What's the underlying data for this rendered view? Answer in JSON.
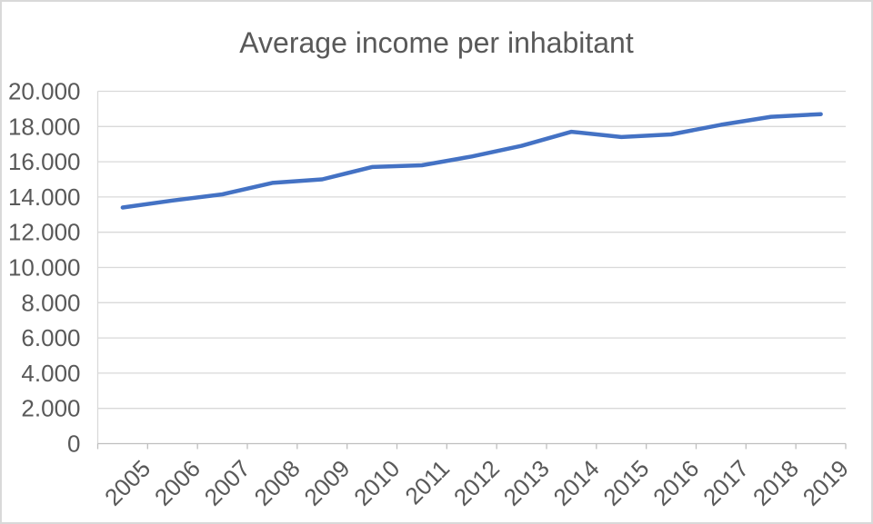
{
  "chart_data": {
    "type": "line",
    "title": "Average income per inhabitant",
    "categories": [
      "2005",
      "2006",
      "2007",
      "2008",
      "2009",
      "2010",
      "2011",
      "2012",
      "2013",
      "2014",
      "2015",
      "2016",
      "2017",
      "2018",
      "2019"
    ],
    "values": [
      13400,
      13800,
      14150,
      14800,
      15000,
      15700,
      15800,
      16300,
      16900,
      17700,
      17400,
      17550,
      18100,
      18550,
      18700
    ],
    "xlabel": "",
    "ylabel": "",
    "ylim": [
      0,
      20000
    ],
    "ytick_interval": 2000,
    "ytick_labels": [
      "0",
      "2.000",
      "4.000",
      "6.000",
      "8.000",
      "10.000",
      "12.000",
      "14.000",
      "16.000",
      "18.000",
      "20.000"
    ],
    "grid": true,
    "legend": "none",
    "colors": {
      "line": "#4472C4",
      "gridline": "#D9D9D9",
      "axis": "#BFBFBF",
      "tick_label": "#595959",
      "title": "#595959",
      "background": "#FFFFFF",
      "border": "#D9D9D9"
    }
  }
}
